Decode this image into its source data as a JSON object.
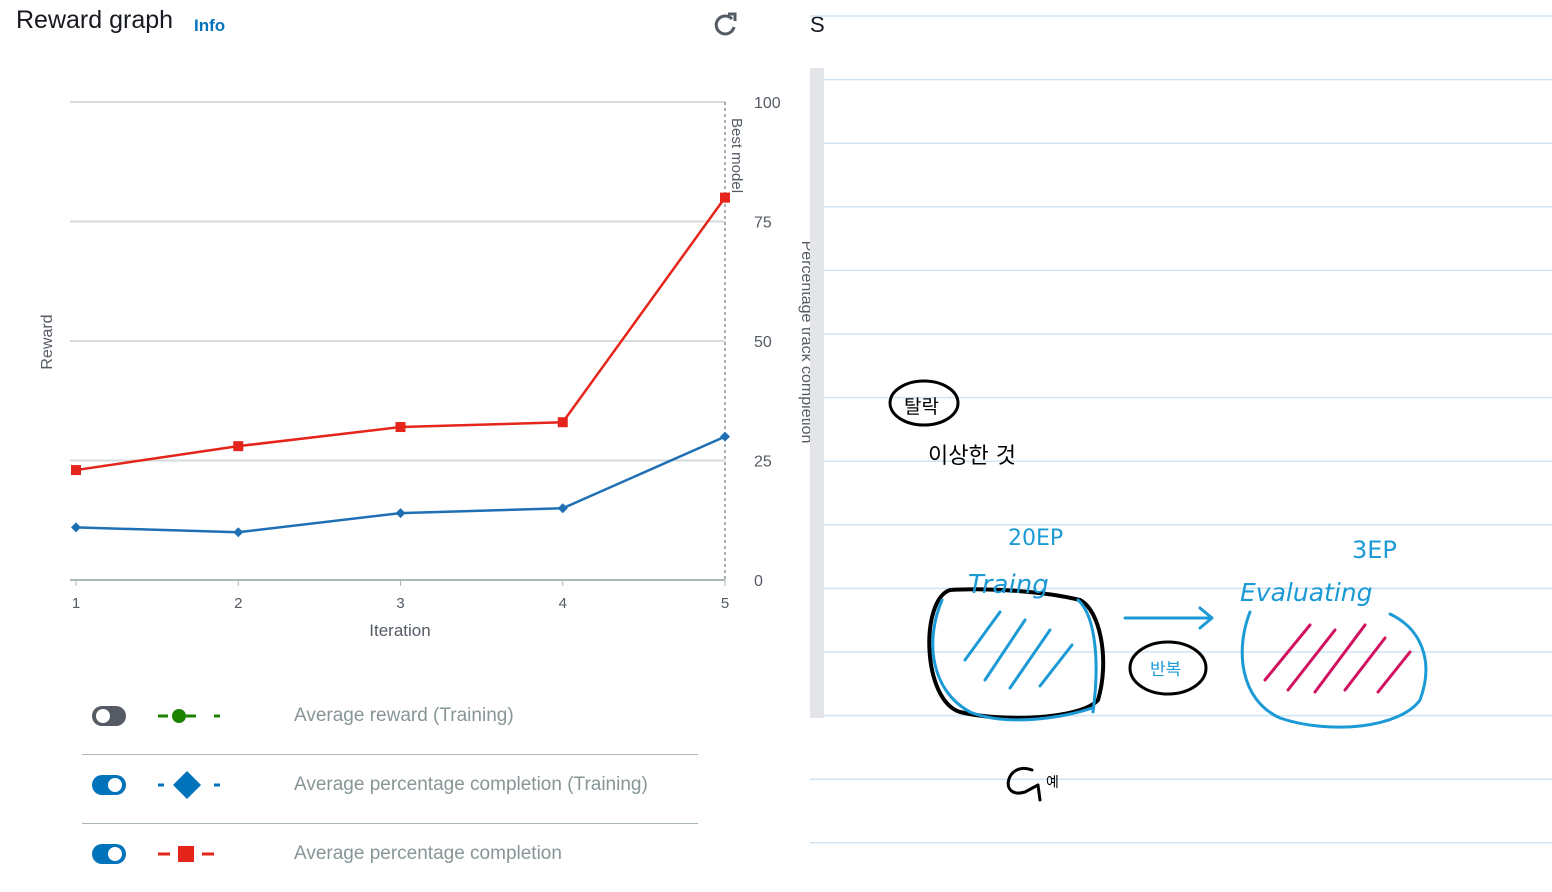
{
  "header": {
    "title": "Reward graph",
    "info_label": "Info",
    "refresh_icon": "refresh-icon",
    "cut_off_letter": "S"
  },
  "chart_data": {
    "type": "line",
    "x": [
      1,
      2,
      3,
      4,
      5
    ],
    "xlabel": "Iteration",
    "ylabel": "Reward",
    "y2label": "Percentage track completion",
    "y2ticks": [
      0,
      25,
      50,
      75,
      100
    ],
    "y2lim": [
      0,
      100
    ],
    "best_model_label": "Best model",
    "best_model_x": 5,
    "grid": true,
    "series": [
      {
        "name": "Average percentage completion (Training)",
        "color": "#1f6fb5",
        "marker": "diamond",
        "axis": "right",
        "values": [
          11,
          10,
          14,
          15,
          30
        ]
      },
      {
        "name": "Average percentage completion",
        "color": "#e5241b",
        "marker": "square",
        "axis": "right",
        "values": [
          23,
          28,
          32,
          33,
          80
        ]
      }
    ]
  },
  "legend": [
    {
      "label": "Average reward (Training)",
      "toggle": "off",
      "marker": "circle",
      "color": "#1d8102"
    },
    {
      "label": "Average percentage completion (Training)",
      "toggle": "on",
      "marker": "diamond",
      "color": "#0073bb"
    },
    {
      "label": "Average percentage completion",
      "toggle": "on",
      "marker": "square",
      "color": "#e5241b"
    }
  ],
  "annotations": {
    "circled_word": "탈락",
    "note": "이상한 것",
    "training_time": "20EP",
    "training_label": "Traing",
    "evaluating_time": "3EP",
    "evaluating_label": "Evaluating",
    "middle_word": "반복",
    "example_label": "예",
    "colors": {
      "ink": "#000000",
      "blue": "#1b9ad6",
      "magenta": "#d1105f"
    }
  }
}
